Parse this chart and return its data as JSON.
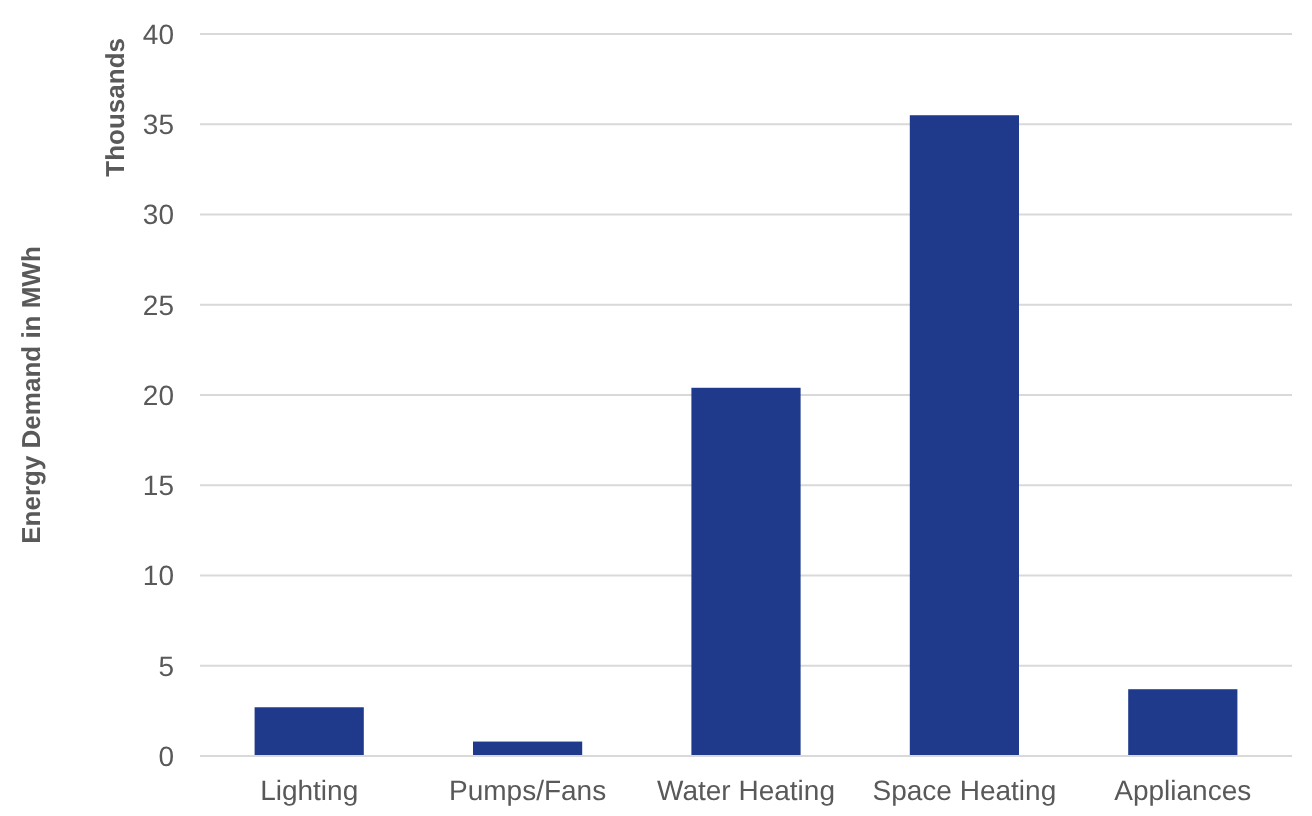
{
  "chart_data": {
    "type": "bar",
    "ylabel": "Energy Demand in MWh",
    "annotations": [
      "Thousands"
    ],
    "categories": [
      "Lighting",
      "Pumps/Fans",
      "Water Heating",
      "Space Heating",
      "Appliances"
    ],
    "values": [
      2.7,
      0.8,
      20.4,
      35.5,
      3.7
    ],
    "color": "#1f3a8a",
    "ylim": [
      0,
      40
    ],
    "yticks": [
      0,
      5,
      10,
      15,
      20,
      25,
      30,
      35,
      40
    ],
    "grid": "y"
  }
}
